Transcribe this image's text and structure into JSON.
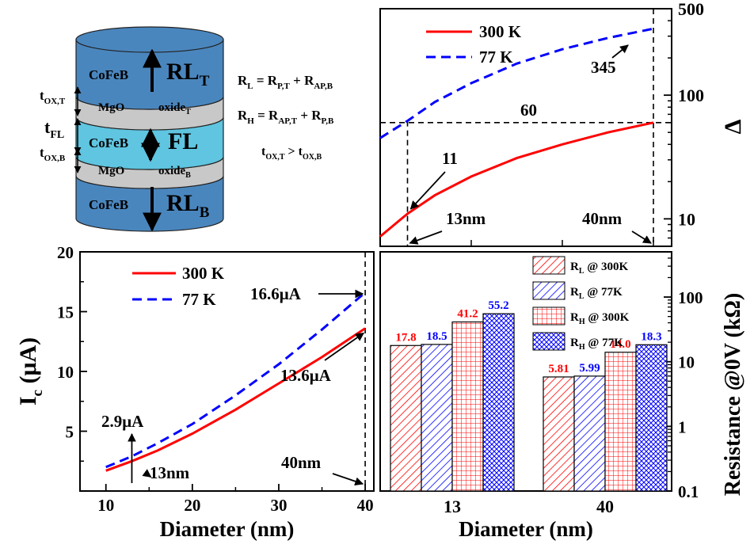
{
  "stack": {
    "layers": {
      "rlt_material": "CoFeB",
      "rlt_label": "RL",
      "rlt_sub": "T",
      "mgo_top": "MgO",
      "oxide_top": "oxide",
      "oxide_top_sub": "T",
      "fl_material": "CoFeB",
      "fl_label": "FL",
      "mgo_bottom": "MgO",
      "oxide_bottom": "oxide",
      "oxide_bottom_sub": "B",
      "rlb_material": "CoFeB",
      "rlb_label": "RL",
      "rlb_sub": "B"
    },
    "thickness": {
      "tox_t": "t",
      "tox_t_sub": "OX,T",
      "tfl": "t",
      "tfl_sub": "FL",
      "tox_b": "t",
      "tox_b_sub": "OX,B"
    }
  },
  "equations": {
    "rl": {
      "lhs": "R",
      "lhs_sub": "L",
      "eq": " = R",
      "a_sub": "P,T",
      "plus": " + R",
      "b_sub": "AP,B"
    },
    "rh": {
      "lhs": "R",
      "lhs_sub": "H",
      "eq": " = R",
      "a_sub": "AP,T",
      "plus": " + R",
      "b_sub": "P,B"
    },
    "tox": {
      "a": "t",
      "a_sub": "OX,T",
      "gt": " > t",
      "b_sub": "OX,B"
    }
  },
  "colors": {
    "red": "#ff0000",
    "blue": "#0000ff",
    "cylinder_blue": "#4a86be",
    "cylinder_cyan": "#5fc5e0",
    "barrier_gray": "#c8c8c8"
  },
  "chart_data": [
    {
      "id": "delta",
      "type": "line",
      "ylabel": "Δ",
      "yscale": "log",
      "xlim": [
        10,
        42
      ],
      "ylim": [
        6,
        500
      ],
      "yticks": [
        10,
        100,
        500
      ],
      "ytick_labels": [
        "10",
        "100",
        "500"
      ],
      "legend": "top-left",
      "series": [
        {
          "name": "300 K",
          "style": "solid",
          "x": [
            10,
            13,
            16,
            20,
            25,
            30,
            35,
            40
          ],
          "y": [
            7.2,
            11,
            15.5,
            22,
            31,
            40,
            50,
            60
          ]
        },
        {
          "name": "77 K",
          "style": "dashed",
          "x": [
            10,
            13,
            16,
            20,
            25,
            30,
            35,
            40
          ],
          "y": [
            45,
            62,
            88,
            125,
            180,
            235,
            290,
            345
          ]
        }
      ],
      "annotations": [
        {
          "text": "345",
          "x": 40,
          "y": 345
        },
        {
          "text": "60",
          "x": 40,
          "y": 60
        },
        {
          "text": "11",
          "x": 13,
          "y": 11
        },
        {
          "text": "13nm",
          "x": 13
        },
        {
          "text": "40nm",
          "x": 40
        }
      ]
    },
    {
      "id": "ic",
      "type": "line",
      "xlabel": "Diameter (nm)",
      "ylabel": "I",
      "ylabel_sub": "c",
      "ylabel_unit": " (μA)",
      "xlim": [
        7,
        41
      ],
      "ylim": [
        0,
        20
      ],
      "xticks": [
        10,
        20,
        30,
        40
      ],
      "xtick_labels": [
        "10",
        "20",
        "30",
        "40"
      ],
      "yticks": [
        5,
        10,
        15,
        20
      ],
      "ytick_labels": [
        "5",
        "10",
        "15",
        "20"
      ],
      "legend": "top-left",
      "series": [
        {
          "name": "300 K",
          "style": "solid",
          "x": [
            10,
            13,
            16,
            20,
            25,
            30,
            35,
            40
          ],
          "y": [
            1.7,
            2.5,
            3.4,
            4.8,
            6.8,
            9.0,
            11.2,
            13.6
          ]
        },
        {
          "name": "77 K",
          "style": "dashed",
          "x": [
            10,
            13,
            16,
            20,
            25,
            30,
            35,
            40
          ],
          "y": [
            2.0,
            2.9,
            4.0,
            5.6,
            8.0,
            10.6,
            13.5,
            16.6
          ]
        }
      ],
      "annotations": [
        {
          "text": "16.6μA",
          "x": 40,
          "y": 16.6
        },
        {
          "text": "13.6μA",
          "x": 40,
          "y": 13.6
        },
        {
          "text": "2.9μA",
          "x": 13,
          "y": 2.9
        },
        {
          "text": "13nm",
          "x": 13
        },
        {
          "text": "40nm",
          "x": 40
        }
      ]
    },
    {
      "id": "resistance",
      "type": "bar",
      "xlabel": "Diameter (nm)",
      "ylabel": "Resistance @0V (kΩ)",
      "yscale": "log",
      "ylim": [
        0.1,
        500
      ],
      "yticks": [
        0.1,
        1,
        10,
        100
      ],
      "ytick_labels": [
        "0.1",
        "1",
        "10",
        "100"
      ],
      "categories": [
        "13",
        "40"
      ],
      "legend": "top-right",
      "series": [
        {
          "name": "R",
          "name_sub": "L",
          "name_suffix": " @ 300K",
          "pattern": "diag-red",
          "values": [
            17.8,
            5.81
          ],
          "labels": [
            "17.8",
            "5.81"
          ]
        },
        {
          "name": "R",
          "name_sub": "L",
          "name_suffix": " @ 77K",
          "pattern": "diag-blue",
          "values": [
            18.5,
            5.99
          ],
          "labels": [
            "18.5",
            "5.99"
          ]
        },
        {
          "name": "R",
          "name_sub": "H",
          "name_suffix": " @ 300K",
          "pattern": "grid-red",
          "values": [
            41.2,
            14.0
          ],
          "labels": [
            "41.2",
            "14.0"
          ]
        },
        {
          "name": "R",
          "name_sub": "H",
          "name_suffix": " @ 77K",
          "pattern": "cross-blue",
          "values": [
            55.2,
            18.3
          ],
          "labels": [
            "55.2",
            "18.3"
          ]
        }
      ]
    }
  ]
}
